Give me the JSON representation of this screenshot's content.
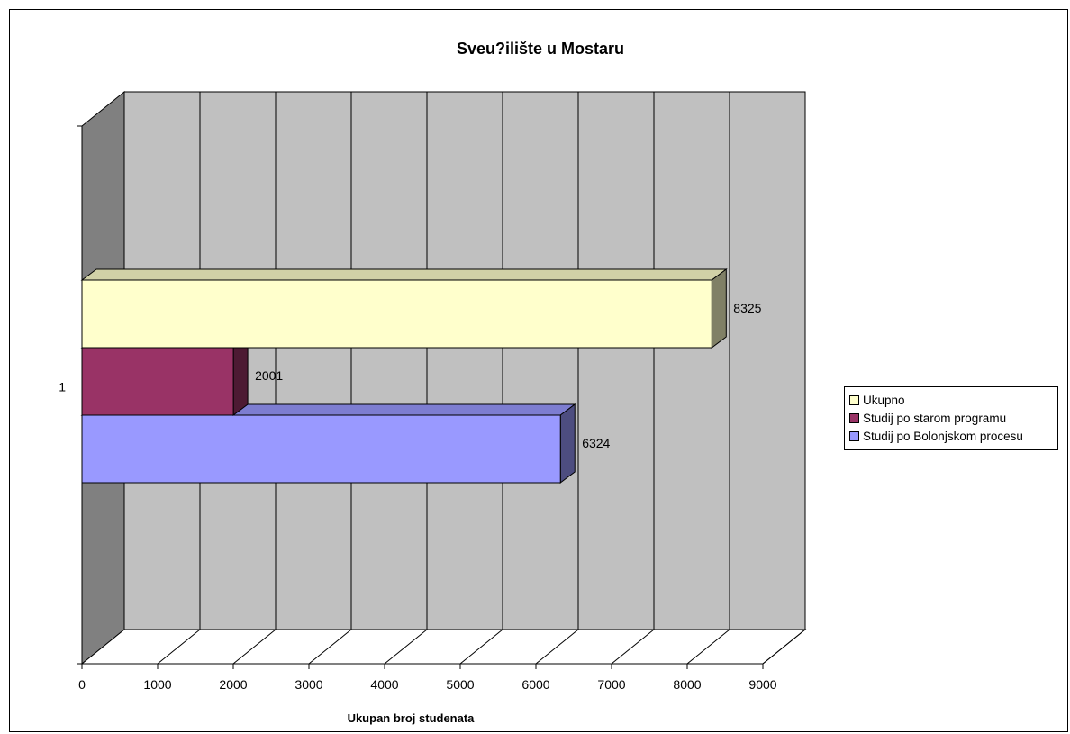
{
  "chart_data": {
    "type": "bar",
    "orientation": "horizontal",
    "style": "3d",
    "title": "Sveu?ilište u Mostaru",
    "xlabel": "Ukupan broj studenata",
    "ylabel": "",
    "categories": [
      "1"
    ],
    "xlim": [
      0,
      9000
    ],
    "x_ticks": [
      "0",
      "1000",
      "2000",
      "3000",
      "4000",
      "5000",
      "6000",
      "7000",
      "8000",
      "9000"
    ],
    "grid": true,
    "legend_position": "right",
    "series": [
      {
        "name": "Ukupno",
        "values": [
          8325
        ],
        "color": "#ffffcc",
        "label": "8325"
      },
      {
        "name": "Studij po starom programu",
        "values": [
          2001
        ],
        "color": "#993366",
        "label": "2001"
      },
      {
        "name": "Studij po Bolonjskom procesu",
        "values": [
          6324
        ],
        "color": "#9999ff",
        "label": "6324"
      }
    ],
    "colors": {
      "wall": "#c0c0c0",
      "side_wall": "#808080",
      "grid": "#000000"
    }
  }
}
